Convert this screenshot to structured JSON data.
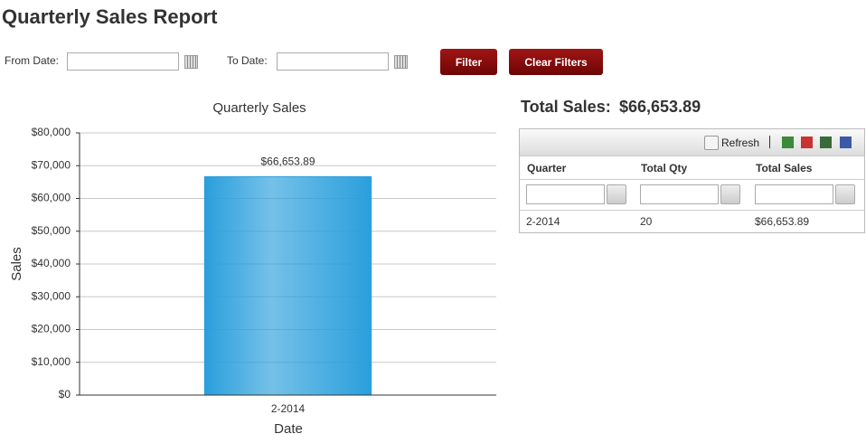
{
  "header": {
    "title": "Quarterly Sales Report"
  },
  "filters": {
    "from_label": "From Date:",
    "to_label": "To Date:",
    "filter_button": "Filter",
    "clear_button": "Clear Filters"
  },
  "chart_data": {
    "type": "bar",
    "title": "Quarterly Sales",
    "x_label": "Date",
    "y_label": "Sales",
    "categories": [
      "2-2014"
    ],
    "values": [
      66653.89
    ],
    "value_labels": [
      "$66,653.89"
    ],
    "color": "#2a9fdc",
    "ylim": [
      0,
      80000
    ],
    "yticks": [
      {
        "value": 0,
        "label": "$0"
      },
      {
        "value": 10000,
        "label": "$10,000"
      },
      {
        "value": 20000,
        "label": "$20,000"
      },
      {
        "value": 30000,
        "label": "$30,000"
      },
      {
        "value": 40000,
        "label": "$40,000"
      },
      {
        "value": 50000,
        "label": "$50,000"
      },
      {
        "value": 60000,
        "label": "$60,000"
      },
      {
        "value": 70000,
        "label": "$70,000"
      },
      {
        "value": 80000,
        "label": "$80,000"
      }
    ],
    "grid": true
  },
  "summary": {
    "label": "Total Sales:",
    "value": "$66,653.89"
  },
  "grid": {
    "refresh": "Refresh",
    "columns": [
      "Quarter",
      "Total Qty",
      "Total Sales"
    ],
    "rows": [
      [
        "2-2014",
        "20",
        "$66,653.89"
      ]
    ]
  }
}
